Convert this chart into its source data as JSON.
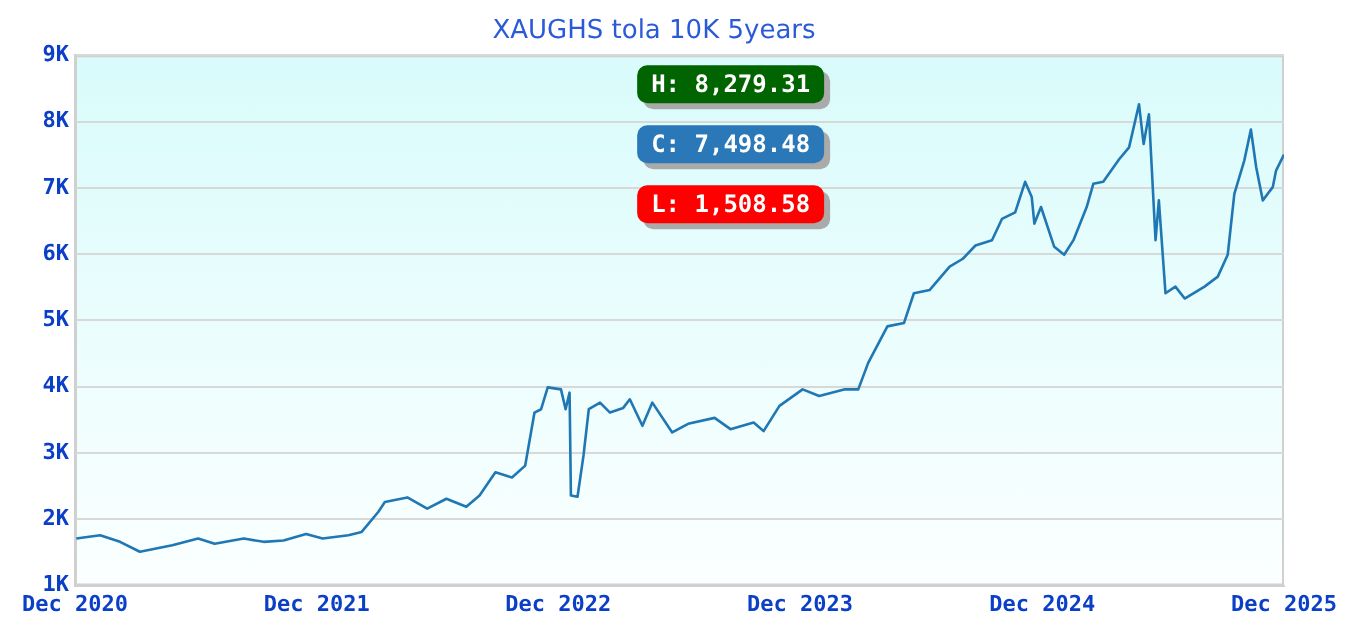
{
  "chart_data": {
    "type": "line",
    "title": "XAUGHS tola 10K 5years",
    "annotations": [
      "H: 8,279.31",
      "C: 7,498.48",
      "L: 1,508.58"
    ],
    "x": [
      "2020-12-03",
      "2021-01-08",
      "2021-02-07",
      "2021-03-09",
      "2021-04-27",
      "2021-06-05",
      "2021-06-30",
      "2021-08-13",
      "2021-09-12",
      "2021-10-12",
      "2021-11-15",
      "2021-12-10",
      "2022-01-18",
      "2022-02-07",
      "2022-03-04",
      "2022-03-14",
      "2022-04-17",
      "2022-05-17",
      "2022-06-15",
      "2022-07-15",
      "2022-08-04",
      "2022-08-28",
      "2022-09-22",
      "2022-10-12",
      "2022-10-26",
      "2022-11-05",
      "2022-11-15",
      "2022-12-05",
      "2022-12-12",
      "2022-12-18",
      "2022-12-20",
      "2022-12-30",
      "2023-01-08",
      "2023-01-16",
      "2023-02-02",
      "2023-02-17",
      "2023-03-09",
      "2023-03-19",
      "2023-04-07",
      "2023-04-22",
      "2023-05-22",
      "2023-06-15",
      "2023-07-25",
      "2023-08-18",
      "2023-09-22",
      "2023-10-07",
      "2023-10-31",
      "2023-12-05",
      "2023-12-30",
      "2024-02-07",
      "2024-02-27",
      "2024-03-13",
      "2024-04-11",
      "2024-05-06",
      "2024-05-21",
      "2024-06-14",
      "2024-07-14",
      "2024-08-03",
      "2024-08-22",
      "2024-09-16",
      "2024-10-01",
      "2024-10-21",
      "2024-11-05",
      "2024-11-15",
      "2024-11-19",
      "2024-11-29",
      "2024-12-19",
      "2025-01-03",
      "2025-01-17",
      "2025-02-06",
      "2025-02-16",
      "2025-03-03",
      "2025-03-27",
      "2025-04-11",
      "2025-04-26",
      "2025-05-03",
      "2025-05-11",
      "2025-05-21",
      "2025-05-26",
      "2025-06-05",
      "2025-06-20",
      "2025-07-04",
      "2025-08-03",
      "2025-08-23",
      "2025-09-07",
      "2025-09-17",
      "2025-10-02",
      "2025-10-12",
      "2025-10-20",
      "2025-10-30",
      "2025-11-14",
      "2025-11-19",
      "2025-12-01"
    ],
    "series": [
      {
        "color": "#1f77b4",
        "values": [
          1710,
          1760,
          1660,
          1510,
          1610,
          1710,
          1630,
          1710,
          1660,
          1680,
          1780,
          1710,
          1760,
          1810,
          2110,
          2260,
          2330,
          2160,
          2310,
          2190,
          2360,
          2710,
          2630,
          2810,
          3610,
          3660,
          3990,
          3960,
          3660,
          3910,
          2360,
          2340,
          2960,
          3660,
          3760,
          3610,
          3680,
          3810,
          3410,
          3760,
          3310,
          3440,
          3530,
          3360,
          3460,
          3330,
          3710,
          3960,
          3860,
          3960,
          3960,
          4360,
          4910,
          4960,
          5410,
          5460,
          5810,
          5930,
          6130,
          6210,
          6530,
          6630,
          7090,
          6860,
          6460,
          6710,
          6110,
          5990,
          6210,
          6710,
          7060,
          7090,
          7430,
          7610,
          8260,
          7660,
          8110,
          6210,
          6810,
          5410,
          5510,
          5330,
          5510,
          5660,
          5990,
          6910,
          7410,
          7880,
          7310,
          6810,
          7010,
          7260,
          7500
        ]
      }
    ],
    "xlim": [
      "2020-12-01",
      "2025-12-01"
    ],
    "xticks": [
      {
        "value": "2020-12-01",
        "label": "Dec 2020"
      },
      {
        "value": "2021-12-01",
        "label": "Dec 2021"
      },
      {
        "value": "2022-12-01",
        "label": "Dec 2022"
      },
      {
        "value": "2023-12-01",
        "label": "Dec 2023"
      },
      {
        "value": "2024-12-01",
        "label": "Dec 2024"
      },
      {
        "value": "2025-12-01",
        "label": "Dec 2025"
      }
    ],
    "ylim": [
      1000,
      9000
    ],
    "yticks": [
      {
        "value": 1000,
        "label": "1K"
      },
      {
        "value": 2000,
        "label": "2K"
      },
      {
        "value": 3000,
        "label": "3K"
      },
      {
        "value": 4000,
        "label": "4K"
      },
      {
        "value": 5000,
        "label": "5K"
      },
      {
        "value": 6000,
        "label": "6K"
      },
      {
        "value": 7000,
        "label": "7K"
      },
      {
        "value": 8000,
        "label": "8K"
      },
      {
        "value": 9000,
        "label": "9K"
      }
    ],
    "grid": "y",
    "legend": false,
    "marker": "none",
    "line_style": "solid"
  }
}
